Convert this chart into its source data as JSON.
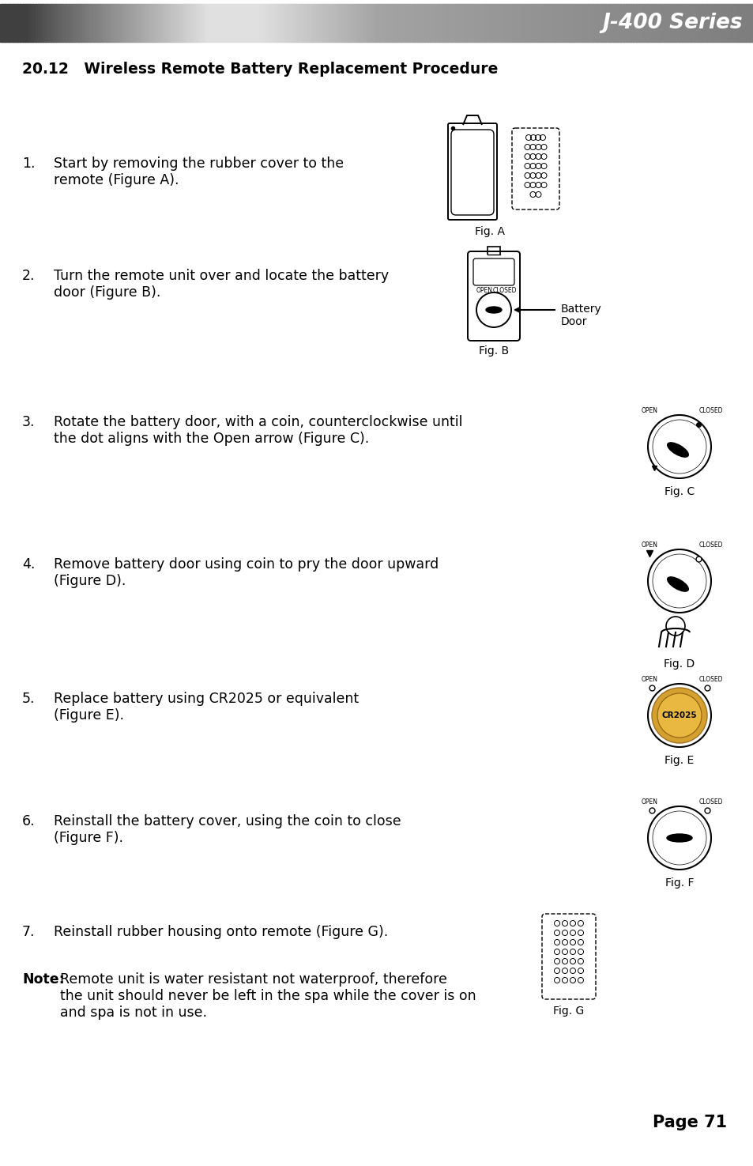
{
  "title_bar_text": "J-400 Series",
  "section_title": "20.12   Wireless Remote Battery Replacement Procedure",
  "steps": [
    {
      "num": "1.",
      "text": "Start by removing the rubber cover to the\nremote (Figure A).",
      "fig_label": "Fig. A"
    },
    {
      "num": "2.",
      "text": "Turn the remote unit over and locate the battery\ndoor (Figure B).",
      "fig_label": "Fig. B",
      "annotation": "Battery\nDoor"
    },
    {
      "num": "3.",
      "text": "Rotate the battery door, with a coin, counterclockwise until\nthe dot aligns with the Open arrow (Figure C).",
      "fig_label": "Fig. C"
    },
    {
      "num": "4.",
      "text": "Remove battery door using coin to pry the door upward\n(Figure D).",
      "fig_label": "Fig. D"
    },
    {
      "num": "5.",
      "text": "Replace battery using CR2025 or equivalent\n(Figure E).",
      "fig_label": "Fig. E"
    },
    {
      "num": "6.",
      "text": "Reinstall the battery cover, using the coin to close\n(Figure F).",
      "fig_label": "Fig. F"
    },
    {
      "num": "7.",
      "text": "Reinstall rubber housing onto remote (Figure G).",
      "fig_label": "Fig. G"
    }
  ],
  "note_bold": "Note:",
  "note_rest": " Remote unit is water resistant not waterproof, therefore\nthe unit should never be left in the spa while the cover is on\nand spa is not in use.",
  "page_num": "Page 71",
  "bg_color": "#ffffff",
  "text_color": "#000000"
}
